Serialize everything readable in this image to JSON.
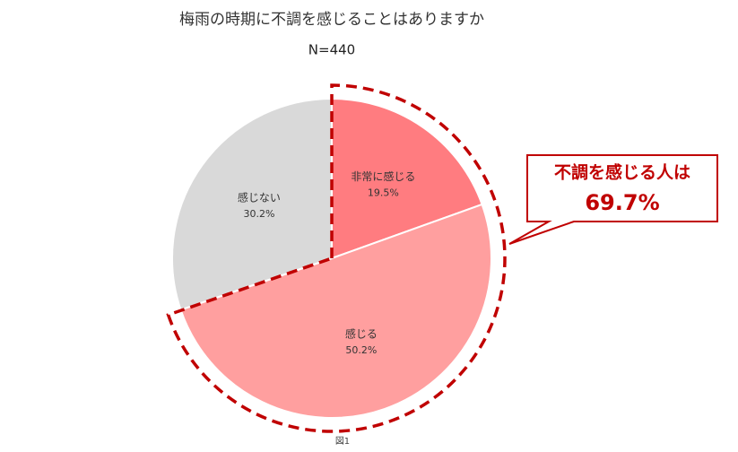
{
  "chart_data": {
    "type": "pie",
    "title": "梅雨の時期に不調を感じることはありますか",
    "subtitle": "N=440",
    "categories": [
      "非常に感じる",
      "感じる",
      "感じない"
    ],
    "values": [
      19.5,
      50.2,
      30.2
    ],
    "value_labels": [
      "19.5%",
      "50.2%",
      "30.2%"
    ],
    "colors": [
      "#ff7c80",
      "#ff9f9f",
      "#d9d9d9"
    ],
    "callout": {
      "text": "不調を感じる人は",
      "value": 69.7,
      "label": "69.7%",
      "color": "#c00000"
    },
    "caption": "図1"
  }
}
